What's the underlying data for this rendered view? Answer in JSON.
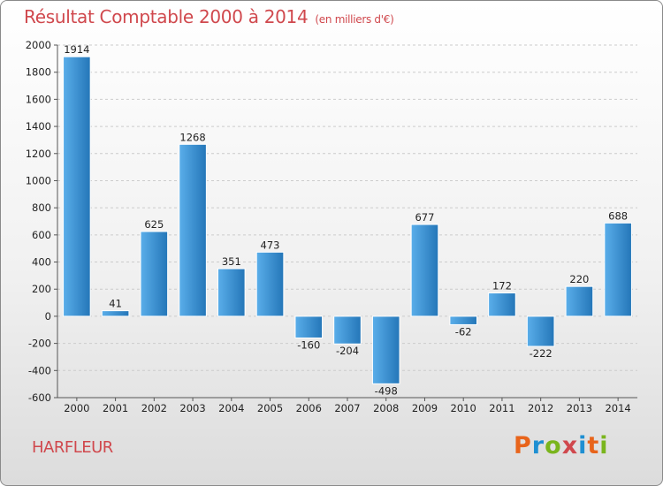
{
  "header": {
    "title": "Résultat Comptable 2000 à 2014",
    "subtitle": "(en milliers d'€)"
  },
  "footer": {
    "commune": "HARFLEUR",
    "logo": [
      "P",
      "r",
      "o",
      "x",
      "i",
      "t",
      "i"
    ],
    "logo_colors": [
      "#e8641b",
      "#1e8fd2",
      "#7ab51d",
      "#d0484d",
      "#1e8fd2",
      "#e8641b",
      "#7ab51d"
    ]
  },
  "colors": {
    "bar_light": "#5aaeea",
    "bar_dark": "#2476b8",
    "grid": "#cccccc",
    "title": "#d0484d"
  },
  "chart_data": {
    "type": "bar",
    "title": "Résultat Comptable 2000 à 2014",
    "subtitle": "(en milliers d'€)",
    "xlabel": "",
    "ylabel": "",
    "categories": [
      "2000",
      "2001",
      "2002",
      "2003",
      "2004",
      "2005",
      "2006",
      "2007",
      "2008",
      "2009",
      "2010",
      "2011",
      "2012",
      "2013",
      "2014"
    ],
    "values": [
      1914,
      41,
      625,
      1268,
      351,
      473,
      -160,
      -204,
      -498,
      677,
      -62,
      172,
      -222,
      220,
      688
    ],
    "ylim": [
      -600,
      2000
    ],
    "yticks": [
      -600,
      -400,
      -200,
      0,
      200,
      400,
      600,
      800,
      1000,
      1200,
      1400,
      1600,
      1800,
      2000
    ],
    "grid": true,
    "legend": "none"
  }
}
